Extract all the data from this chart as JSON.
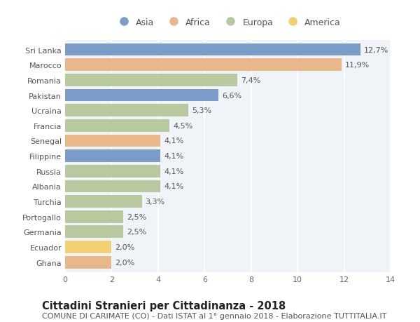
{
  "countries": [
    "Sri Lanka",
    "Marocco",
    "Romania",
    "Pakistan",
    "Ucraina",
    "Francia",
    "Senegal",
    "Filippine",
    "Russia",
    "Albania",
    "Turchia",
    "Portogallo",
    "Germania",
    "Ecuador",
    "Ghana"
  ],
  "values": [
    12.7,
    11.9,
    7.4,
    6.6,
    5.3,
    4.5,
    4.1,
    4.1,
    4.1,
    4.1,
    3.3,
    2.5,
    2.5,
    2.0,
    2.0
  ],
  "labels": [
    "12,7%",
    "11,9%",
    "7,4%",
    "6,6%",
    "5,3%",
    "4,5%",
    "4,1%",
    "4,1%",
    "4,1%",
    "4,1%",
    "3,3%",
    "2,5%",
    "2,5%",
    "2,0%",
    "2,0%"
  ],
  "continents": [
    "Asia",
    "Africa",
    "Europa",
    "Asia",
    "Europa",
    "Europa",
    "Africa",
    "Asia",
    "Europa",
    "Europa",
    "Europa",
    "Europa",
    "Europa",
    "America",
    "Africa"
  ],
  "continent_colors": {
    "Asia": "#7b9bc8",
    "Africa": "#e8b88a",
    "Europa": "#b8c9a0",
    "America": "#f0d070"
  },
  "legend_order": [
    "Asia",
    "Africa",
    "Europa",
    "America"
  ],
  "title": "Cittadini Stranieri per Cittadinanza - 2018",
  "subtitle": "COMUNE DI CARIMATE (CO) - Dati ISTAT al 1° gennaio 2018 - Elaborazione TUTTITALIA.IT",
  "xlim": [
    0,
    14
  ],
  "xticks": [
    0,
    2,
    4,
    6,
    8,
    10,
    12,
    14
  ],
  "background_color": "#ffffff",
  "plot_bg_color": "#f0f4f8",
  "grid_color": "#ffffff",
  "bar_height": 0.82,
  "title_fontsize": 10.5,
  "subtitle_fontsize": 8,
  "label_fontsize": 8,
  "tick_fontsize": 8,
  "legend_fontsize": 9
}
